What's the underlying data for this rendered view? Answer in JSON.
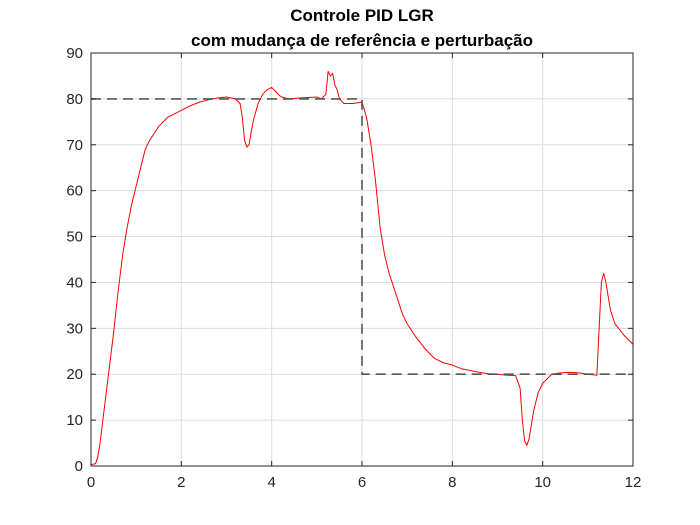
{
  "chart_data": {
    "type": "line",
    "title": "Controle PID LGR",
    "subtitle": "com mudança de referência e perturbação",
    "xlabel": "",
    "ylabel": "",
    "xlim": [
      0,
      12
    ],
    "ylim": [
      0,
      90
    ],
    "xticks": [
      0,
      2,
      4,
      6,
      8,
      10,
      12
    ],
    "yticks": [
      0,
      10,
      20,
      30,
      40,
      50,
      60,
      70,
      80,
      90
    ],
    "grid": true,
    "series": [
      {
        "color": "#ff0000",
        "style": "solid",
        "x": [
          0,
          0.1,
          0.15,
          0.2,
          0.25,
          0.3,
          0.4,
          0.5,
          0.6,
          0.7,
          0.8,
          0.9,
          1.0,
          1.1,
          1.2,
          1.3,
          1.4,
          1.5,
          1.6,
          1.7,
          1.8,
          1.9,
          2.0,
          2.2,
          2.4,
          2.6,
          2.8,
          3.0,
          3.1,
          3.2,
          3.3,
          3.35,
          3.4,
          3.45,
          3.5,
          3.55,
          3.6,
          3.7,
          3.8,
          3.9,
          4.0,
          4.1,
          4.2,
          4.3,
          4.4,
          4.6,
          4.8,
          5.0,
          5.1,
          5.2,
          5.25,
          5.3,
          5.35,
          5.4,
          5.45,
          5.5,
          5.6,
          5.8,
          6.0,
          6.1,
          6.2,
          6.3,
          6.4,
          6.5,
          6.6,
          6.7,
          6.8,
          6.9,
          7.0,
          7.2,
          7.4,
          7.6,
          7.8,
          8.0,
          8.2,
          8.4,
          8.6,
          8.8,
          9.0,
          9.2,
          9.4,
          9.5,
          9.55,
          9.6,
          9.65,
          9.7,
          9.75,
          9.8,
          9.9,
          10.0,
          10.2,
          10.4,
          10.6,
          10.8,
          11.0,
          11.2,
          11.25,
          11.3,
          11.35,
          11.4,
          11.5,
          11.6,
          11.8,
          12.0
        ],
        "y": [
          0.3,
          0.5,
          2,
          5,
          9,
          13,
          21,
          29,
          38,
          46,
          52,
          57,
          61,
          65,
          69,
          71,
          72.5,
          74,
          75,
          76,
          76.5,
          77,
          77.5,
          78.5,
          79.3,
          79.8,
          80.2,
          80.4,
          80.2,
          80,
          79,
          76,
          71,
          69.5,
          70,
          73,
          75.5,
          79,
          81,
          82,
          82.5,
          81.5,
          80.5,
          80.2,
          80,
          80.2,
          80.3,
          80.4,
          80,
          81,
          86,
          85,
          85.5,
          83,
          82,
          80,
          79,
          79,
          79.3,
          76,
          70,
          62,
          52,
          46,
          42,
          39,
          36,
          33,
          31,
          28,
          25.5,
          23.5,
          22.5,
          22,
          21.2,
          20.8,
          20.4,
          20.1,
          20,
          19.8,
          19.7,
          17,
          10,
          5.5,
          4.5,
          6,
          9,
          12,
          16,
          18,
          20,
          20.3,
          20.4,
          20.3,
          20,
          19.8,
          30,
          40,
          42,
          40,
          34,
          31,
          28.5,
          26.5
        ]
      },
      {
        "color": "#555555",
        "style": "dashed",
        "x": [
          0,
          6,
          6,
          12
        ],
        "y": [
          80,
          80,
          20,
          20
        ]
      }
    ]
  }
}
